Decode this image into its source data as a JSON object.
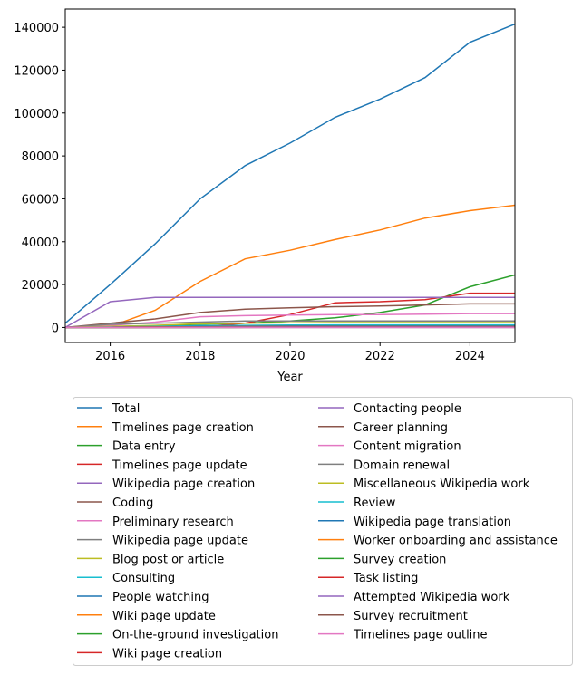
{
  "chart_data": {
    "type": "line",
    "title": "",
    "xlabel": "Year",
    "ylabel": "",
    "xlim": [
      2015,
      2025
    ],
    "ylim": [
      -7000,
      148500
    ],
    "xticks": [
      2016,
      2018,
      2020,
      2022,
      2024
    ],
    "yticks": [
      0,
      20000,
      40000,
      60000,
      80000,
      100000,
      120000,
      140000
    ],
    "grid": false,
    "legend_placement": "below",
    "x": [
      2015,
      2016,
      2017,
      2018,
      2019,
      2020,
      2021,
      2022,
      2023,
      2024,
      2025
    ],
    "series": [
      {
        "name": "Total",
        "color": "#1f77b4",
        "values": [
          2000,
          20000,
          39000,
          60000,
          75500,
          86000,
          98000,
          106500,
          116500,
          133000,
          141500
        ]
      },
      {
        "name": "Timelines page creation",
        "color": "#ff7f0e",
        "values": [
          0,
          500,
          8000,
          21500,
          32000,
          36000,
          41000,
          45500,
          51000,
          54500,
          57000
        ]
      },
      {
        "name": "Data entry",
        "color": "#2ca02c",
        "values": [
          0,
          300,
          800,
          1500,
          2000,
          3000,
          4500,
          7000,
          10500,
          19000,
          24500
        ]
      },
      {
        "name": "Timelines page update",
        "color": "#d62728",
        "values": [
          0,
          0,
          0,
          300,
          2000,
          6000,
          11500,
          12000,
          13000,
          16000,
          16000
        ]
      },
      {
        "name": "Wikipedia page creation",
        "color": "#9467bd",
        "values": [
          0,
          12000,
          14000,
          14000,
          14000,
          14000,
          14000,
          14000,
          14000,
          14000,
          14000
        ]
      },
      {
        "name": "Coding",
        "color": "#8c564b",
        "values": [
          0,
          2000,
          4000,
          7000,
          8500,
          9200,
          9700,
          10000,
          10500,
          11000,
          11000
        ]
      },
      {
        "name": "Preliminary research",
        "color": "#e377c2",
        "values": [
          0,
          1000,
          2500,
          5000,
          5500,
          5800,
          6000,
          6000,
          6200,
          6500,
          6500
        ]
      },
      {
        "name": "Wikipedia page update",
        "color": "#7f7f7f",
        "values": [
          0,
          1500,
          2000,
          2500,
          3000,
          3000,
          3000,
          3000,
          3000,
          3000,
          3000
        ]
      },
      {
        "name": "Blog post or article",
        "color": "#bcbd22",
        "values": [
          0,
          500,
          1000,
          1800,
          2000,
          2200,
          2300,
          2300,
          2300,
          2300,
          2300
        ]
      },
      {
        "name": "Consulting",
        "color": "#17becf",
        "values": [
          0,
          200,
          500,
          800,
          1000,
          1100,
          1200,
          1200,
          1200,
          1200,
          1200
        ]
      },
      {
        "name": "People watching",
        "color": "#1f77b4",
        "values": [
          0,
          100,
          300,
          500,
          600,
          700,
          700,
          700,
          700,
          700,
          700
        ]
      },
      {
        "name": "Wiki page update",
        "color": "#ff7f0e",
        "values": [
          0,
          100,
          200,
          300,
          400,
          400,
          400,
          400,
          400,
          400,
          400
        ]
      },
      {
        "name": "On-the-ground investigation",
        "color": "#2ca02c",
        "values": [
          0,
          100,
          200,
          300,
          300,
          300,
          300,
          300,
          300,
          300,
          300
        ]
      },
      {
        "name": "Wiki page creation",
        "color": "#d62728",
        "values": [
          0,
          100,
          200,
          200,
          200,
          200,
          200,
          200,
          200,
          200,
          200
        ]
      },
      {
        "name": "Contacting people",
        "color": "#9467bd",
        "values": [
          0,
          50,
          100,
          150,
          200,
          200,
          200,
          200,
          200,
          200,
          200
        ]
      },
      {
        "name": "Career planning",
        "color": "#8c564b",
        "values": [
          0,
          50,
          100,
          150,
          150,
          150,
          150,
          150,
          150,
          150,
          150
        ]
      },
      {
        "name": "Content migration",
        "color": "#e377c2",
        "values": [
          0,
          0,
          100,
          100,
          100,
          100,
          100,
          100,
          100,
          100,
          100
        ]
      },
      {
        "name": "Domain renewal",
        "color": "#7f7f7f",
        "values": [
          0,
          10,
          20,
          30,
          40,
          50,
          60,
          70,
          80,
          90,
          100
        ]
      },
      {
        "name": "Miscellaneous Wikipedia work",
        "color": "#bcbd22",
        "values": [
          0,
          50,
          80,
          100,
          100,
          100,
          100,
          100,
          100,
          100,
          100
        ]
      },
      {
        "name": "Review",
        "color": "#17becf",
        "values": [
          0,
          0,
          50,
          80,
          100,
          100,
          100,
          100,
          100,
          100,
          100
        ]
      },
      {
        "name": "Wikipedia page translation",
        "color": "#1f77b4",
        "values": [
          0,
          0,
          0,
          50,
          100,
          100,
          100,
          100,
          100,
          100,
          100
        ]
      },
      {
        "name": "Worker onboarding and assistance",
        "color": "#ff7f0e",
        "values": [
          0,
          0,
          20,
          40,
          60,
          80,
          80,
          80,
          80,
          80,
          80
        ]
      },
      {
        "name": "Survey creation",
        "color": "#2ca02c",
        "values": [
          0,
          0,
          0,
          0,
          50,
          50,
          50,
          50,
          50,
          50,
          50
        ]
      },
      {
        "name": "Task listing",
        "color": "#d62728",
        "values": [
          0,
          0,
          0,
          20,
          30,
          40,
          40,
          40,
          40,
          40,
          40
        ]
      },
      {
        "name": "Attempted Wikipedia work",
        "color": "#9467bd",
        "values": [
          0,
          0,
          10,
          20,
          30,
          30,
          30,
          30,
          30,
          30,
          30
        ]
      },
      {
        "name": "Survey recruitment",
        "color": "#8c564b",
        "values": [
          0,
          0,
          0,
          0,
          20,
          20,
          20,
          20,
          20,
          20,
          20
        ]
      },
      {
        "name": "Timelines page outline",
        "color": "#e377c2",
        "values": [
          0,
          0,
          0,
          10,
          10,
          10,
          10,
          10,
          10,
          10,
          10
        ]
      }
    ]
  }
}
